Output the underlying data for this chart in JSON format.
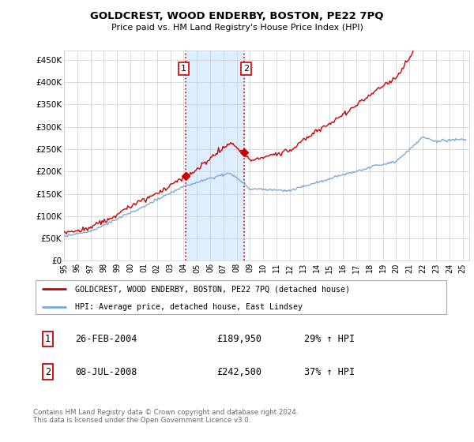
{
  "title": "GOLDCREST, WOOD ENDERBY, BOSTON, PE22 7PQ",
  "subtitle": "Price paid vs. HM Land Registry's House Price Index (HPI)",
  "ylabel_ticks": [
    "£0",
    "£50K",
    "£100K",
    "£150K",
    "£200K",
    "£250K",
    "£300K",
    "£350K",
    "£400K",
    "£450K"
  ],
  "ytick_values": [
    0,
    50000,
    100000,
    150000,
    200000,
    250000,
    300000,
    350000,
    400000,
    450000
  ],
  "ylim": [
    0,
    470000
  ],
  "xlim_start": 1995.0,
  "xlim_end": 2025.5,
  "sale1_x": 2004.15,
  "sale1_y": 189950,
  "sale2_x": 2008.54,
  "sale2_y": 242500,
  "red_color": "#cc0000",
  "blue_color": "#7aaadd",
  "shade_color": "#ddeeff",
  "vline_color": "#cc0000",
  "legend_label_red": "GOLDCREST, WOOD ENDERBY, BOSTON, PE22 7PQ (detached house)",
  "legend_label_blue": "HPI: Average price, detached house, East Lindsey",
  "table_row1": [
    "1",
    "26-FEB-2004",
    "£189,950",
    "29% ↑ HPI"
  ],
  "table_row2": [
    "2",
    "08-JUL-2008",
    "£242,500",
    "37% ↑ HPI"
  ],
  "footer": "Contains HM Land Registry data © Crown copyright and database right 2024.\nThis data is licensed under the Open Government Licence v3.0.",
  "background_color": "#ffffff",
  "grid_color": "#cccccc"
}
